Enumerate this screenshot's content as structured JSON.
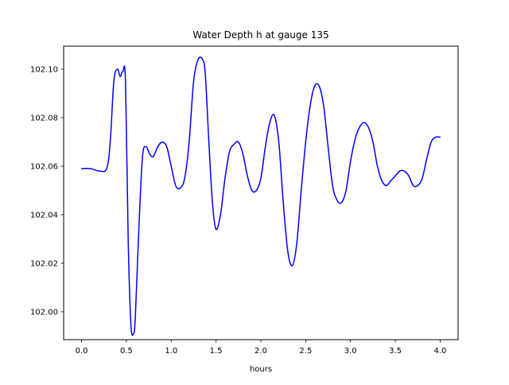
{
  "chart_data": {
    "type": "line",
    "title": "Water Depth h at gauge 135",
    "xlabel": "hours",
    "ylabel": "",
    "xlim": [
      -0.2,
      4.2
    ],
    "ylim": [
      101.9885,
      102.1095
    ],
    "xticks": [
      0.0,
      0.5,
      1.0,
      1.5,
      2.0,
      2.5,
      3.0,
      3.5,
      4.0
    ],
    "xtick_labels": [
      "0.0",
      "0.5",
      "1.0",
      "1.5",
      "2.0",
      "2.5",
      "3.0",
      "3.5",
      "4.0"
    ],
    "yticks": [
      102.0,
      102.02,
      102.04,
      102.06,
      102.08,
      102.1
    ],
    "ytick_labels": [
      "102.00",
      "102.02",
      "102.04",
      "102.06",
      "102.08",
      "102.10"
    ],
    "grid": false,
    "legend": "none",
    "series": [
      {
        "color": "#0000ff",
        "x": [
          0.0,
          0.1,
          0.2,
          0.28,
          0.32,
          0.36,
          0.4,
          0.43,
          0.46,
          0.49,
          0.52,
          0.55,
          0.58,
          0.6,
          0.64,
          0.68,
          0.72,
          0.76,
          0.8,
          0.85,
          0.9,
          0.95,
          1.0,
          1.05,
          1.1,
          1.15,
          1.2,
          1.25,
          1.3,
          1.35,
          1.38,
          1.42,
          1.46,
          1.5,
          1.55,
          1.6,
          1.65,
          1.7,
          1.75,
          1.8,
          1.85,
          1.9,
          1.95,
          2.0,
          2.05,
          2.1,
          2.15,
          2.2,
          2.25,
          2.3,
          2.35,
          2.4,
          2.45,
          2.5,
          2.55,
          2.6,
          2.65,
          2.7,
          2.75,
          2.8,
          2.85,
          2.9,
          2.95,
          3.0,
          3.05,
          3.1,
          3.15,
          3.2,
          3.25,
          3.3,
          3.35,
          3.4,
          3.45,
          3.5,
          3.55,
          3.6,
          3.65,
          3.7,
          3.75,
          3.8,
          3.85,
          3.9,
          3.95,
          4.0
        ],
        "y": [
          102.059,
          102.059,
          102.058,
          102.059,
          102.07,
          102.095,
          102.1,
          102.097,
          102.099,
          102.095,
          102.03,
          101.995,
          101.991,
          101.998,
          102.035,
          102.064,
          102.068,
          102.065,
          102.064,
          102.068,
          102.07,
          102.068,
          102.06,
          102.052,
          102.051,
          102.055,
          102.07,
          102.095,
          102.104,
          102.104,
          102.098,
          102.07,
          102.045,
          102.034,
          102.04,
          102.055,
          102.066,
          102.069,
          102.07,
          102.065,
          102.056,
          102.05,
          102.05,
          102.055,
          102.068,
          102.078,
          102.081,
          102.07,
          102.045,
          102.025,
          102.019,
          102.028,
          102.05,
          102.07,
          102.085,
          102.093,
          102.093,
          102.085,
          102.068,
          102.052,
          102.046,
          102.045,
          102.05,
          102.062,
          102.071,
          102.076,
          102.078,
          102.076,
          102.07,
          102.06,
          102.054,
          102.052,
          102.054,
          102.056,
          102.058,
          102.058,
          102.056,
          102.052,
          102.052,
          102.055,
          102.063,
          102.07,
          102.072,
          102.072
        ]
      }
    ]
  }
}
